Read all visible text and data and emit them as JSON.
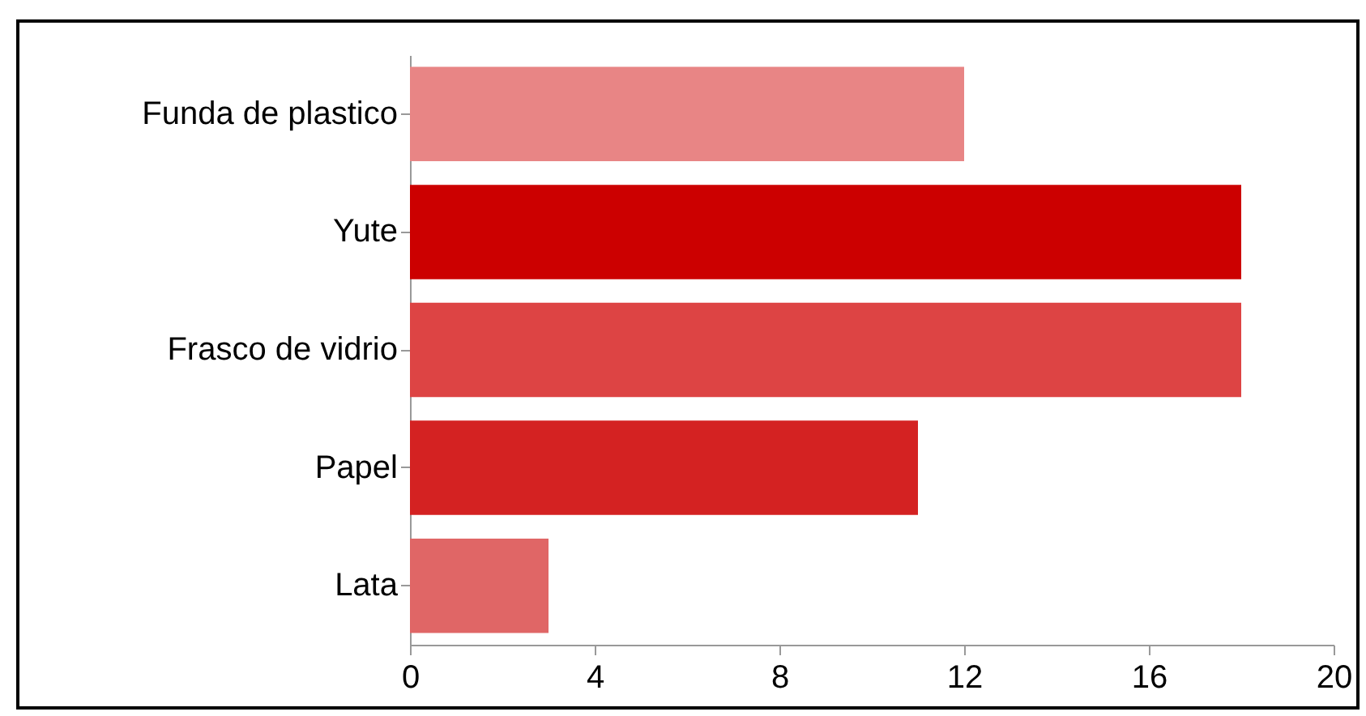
{
  "chart_data": {
    "type": "bar",
    "orientation": "horizontal",
    "categories": [
      "Funda de plastico",
      "Yute",
      "Frasco de vidrio",
      "Papel",
      "Lata"
    ],
    "values": [
      12,
      18,
      18,
      11,
      3
    ],
    "colors": [
      "#e88585",
      "#cc0000",
      "#dd4444",
      "#d42222",
      "#e06666"
    ],
    "xlim": [
      0,
      20
    ],
    "xticks": [
      0,
      4,
      8,
      12,
      16,
      20
    ],
    "grid": false
  }
}
